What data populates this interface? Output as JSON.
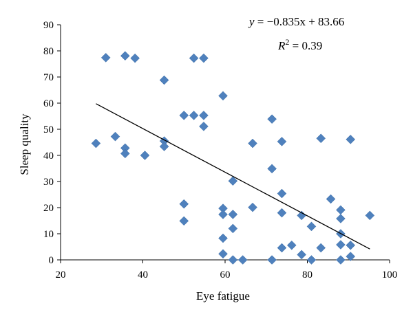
{
  "chart_data": {
    "type": "scatter",
    "title": "",
    "xlabel": "Eye fatigue",
    "ylabel": "Sleep quality",
    "xlim": [
      20,
      100
    ],
    "ylim": [
      0,
      90
    ],
    "xticks": [
      20,
      40,
      60,
      80,
      100
    ],
    "yticks": [
      0,
      10,
      20,
      30,
      40,
      50,
      60,
      70,
      80,
      90
    ],
    "grid": false,
    "marker": "diamond",
    "marker_color": "#4f81bd",
    "points": [
      [
        28.6,
        44.6
      ],
      [
        31.0,
        77.4
      ],
      [
        33.3,
        47.2
      ],
      [
        35.7,
        78.1
      ],
      [
        35.7,
        42.8
      ],
      [
        35.7,
        40.7
      ],
      [
        38.1,
        77.2
      ],
      [
        40.5,
        40.0
      ],
      [
        45.2,
        68.8
      ],
      [
        45.2,
        45.5
      ],
      [
        45.2,
        43.4
      ],
      [
        50.0,
        55.3
      ],
      [
        50.0,
        21.4
      ],
      [
        50.0,
        14.9
      ],
      [
        52.4,
        77.2
      ],
      [
        52.4,
        55.3
      ],
      [
        54.8,
        77.2
      ],
      [
        54.8,
        55.3
      ],
      [
        54.8,
        51.1
      ],
      [
        59.5,
        62.8
      ],
      [
        59.5,
        19.7
      ],
      [
        59.5,
        17.4
      ],
      [
        59.5,
        8.3
      ],
      [
        59.5,
        2.3
      ],
      [
        61.9,
        30.2
      ],
      [
        61.9,
        17.4
      ],
      [
        61.9,
        12.0
      ],
      [
        61.9,
        0.0
      ],
      [
        64.3,
        0.0
      ],
      [
        66.7,
        44.6
      ],
      [
        66.7,
        20.1
      ],
      [
        71.4,
        53.9
      ],
      [
        71.4,
        34.9
      ],
      [
        71.4,
        0.0
      ],
      [
        73.8,
        45.3
      ],
      [
        73.8,
        25.4
      ],
      [
        73.8,
        18.0
      ],
      [
        73.8,
        4.6
      ],
      [
        76.2,
        5.6
      ],
      [
        78.6,
        17.0
      ],
      [
        78.6,
        2.0
      ],
      [
        81.0,
        12.8
      ],
      [
        81.0,
        0.0
      ],
      [
        83.3,
        46.5
      ],
      [
        83.3,
        4.6
      ],
      [
        85.7,
        23.3
      ],
      [
        88.1,
        19.1
      ],
      [
        88.1,
        15.8
      ],
      [
        88.1,
        10.0
      ],
      [
        88.1,
        5.8
      ],
      [
        88.1,
        0.0
      ],
      [
        90.5,
        46.1
      ],
      [
        90.5,
        5.6
      ],
      [
        90.5,
        1.3
      ],
      [
        95.2,
        17.0
      ]
    ],
    "trendline": {
      "slope": -0.835,
      "intercept": 83.66,
      "x_range": [
        28.6,
        95.2
      ],
      "equation_lhs": "y",
      "equation_rhs": " = −0.835x + 83.66",
      "r2_label": "R",
      "r2_exp": "2",
      "r2_value": " = 0.39"
    }
  }
}
